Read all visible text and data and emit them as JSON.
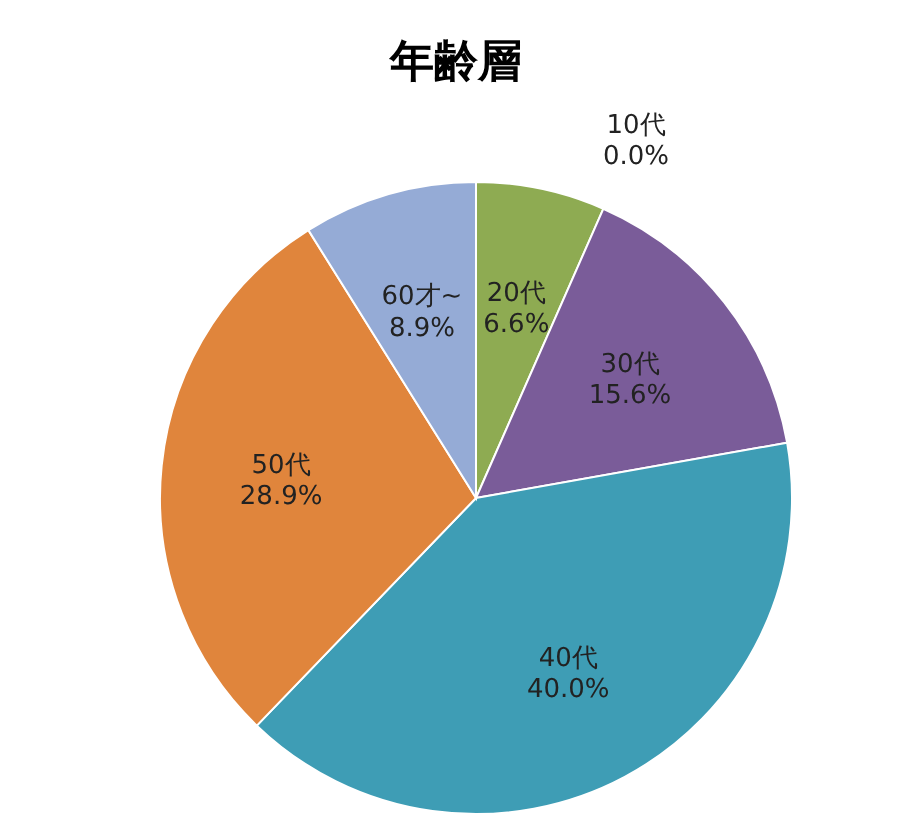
{
  "chart_data": {
    "type": "pie",
    "title": "年齢層",
    "categories": [
      "10代",
      "20代",
      "30代",
      "40代",
      "50代",
      "60才~"
    ],
    "values": [
      0.0,
      6.6,
      15.6,
      40.0,
      28.9,
      8.9
    ],
    "value_labels": [
      "0.0%",
      "6.6%",
      "15.6%",
      "40.0%",
      "28.9%",
      "8.9%"
    ],
    "colors": [
      "#4f81bd",
      "#8eab52",
      "#7a5c99",
      "#3e9db5",
      "#e0853c",
      "#95abd6"
    ]
  }
}
